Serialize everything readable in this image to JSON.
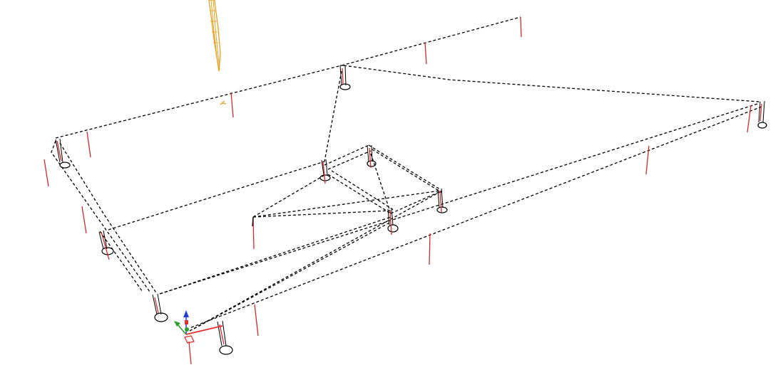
{
  "colors": {
    "background": "#ffffff",
    "wireframe": "#000000",
    "post": "#d42a2a",
    "object": "#e8a020",
    "axis_x": "#e53030",
    "axis_y": "#2aa02a",
    "axis_z": "#2040d0"
  },
  "scene": {
    "view": "3d-isometric-wireframe",
    "line_style": "dashed",
    "icons": [
      "axis-gizmo-icon",
      "ring-marker-icon",
      "post-marker-icon",
      "orange-object-icon"
    ]
  }
}
